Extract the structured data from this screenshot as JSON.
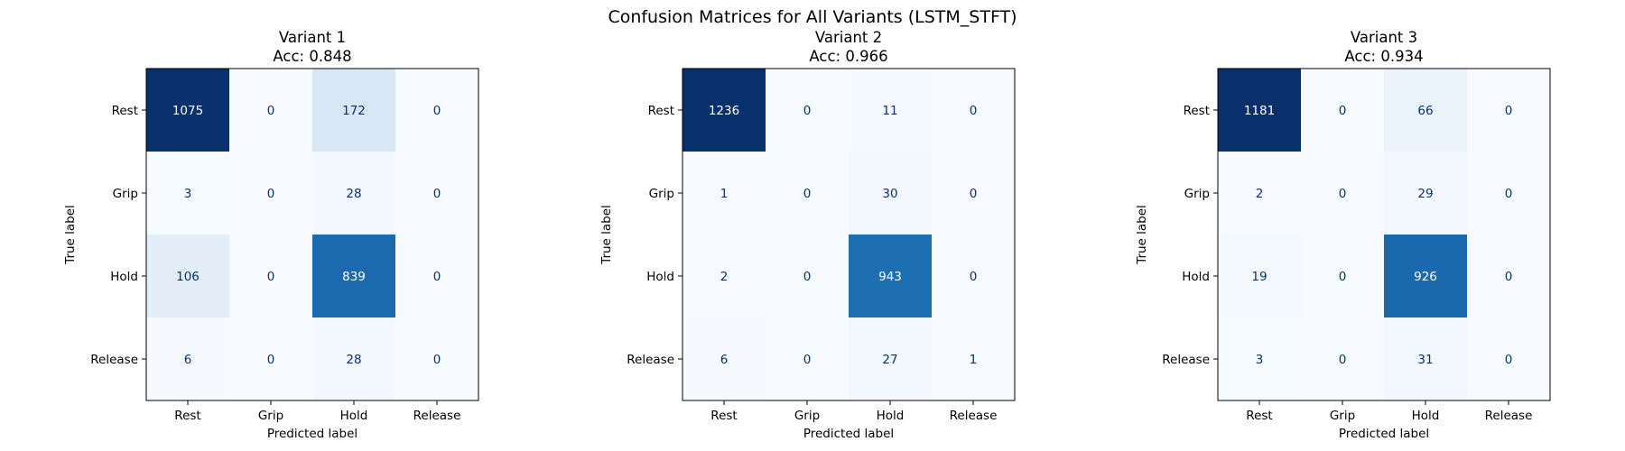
{
  "chart_data": {
    "type": "heatmap",
    "title": "Confusion Matrices for All Variants (LSTM_STFT)",
    "colormap": "Blues",
    "colors": {
      "low": "#f7fbff",
      "high": "#08306b",
      "text_dark": "#08306b",
      "text_light": "#ffffff",
      "frame": "#000000"
    },
    "x_categories": [
      "Rest",
      "Grip",
      "Hold",
      "Release"
    ],
    "y_categories": [
      "Rest",
      "Grip",
      "Hold",
      "Release"
    ],
    "xlabel": "Predicted label",
    "ylabel": "True label",
    "grid": false,
    "panels": [
      {
        "title": "Variant 1",
        "subtitle": "Acc: 0.848",
        "matrix": [
          [
            1075,
            0,
            172,
            0
          ],
          [
            3,
            0,
            28,
            0
          ],
          [
            106,
            0,
            839,
            0
          ],
          [
            6,
            0,
            28,
            0
          ]
        ]
      },
      {
        "title": "Variant 2",
        "subtitle": "Acc: 0.966",
        "matrix": [
          [
            1236,
            0,
            11,
            0
          ],
          [
            1,
            0,
            30,
            0
          ],
          [
            2,
            0,
            943,
            0
          ],
          [
            6,
            0,
            27,
            1
          ]
        ]
      },
      {
        "title": "Variant 3",
        "subtitle": "Acc: 0.934",
        "matrix": [
          [
            1181,
            0,
            66,
            0
          ],
          [
            2,
            0,
            29,
            0
          ],
          [
            19,
            0,
            926,
            0
          ],
          [
            3,
            0,
            31,
            0
          ]
        ]
      }
    ]
  }
}
